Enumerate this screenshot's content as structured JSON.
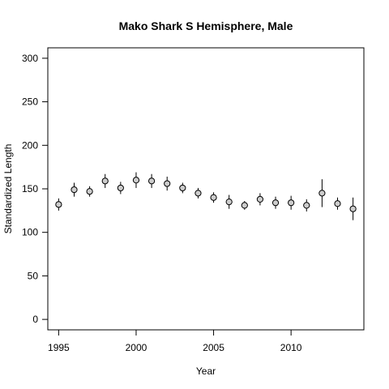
{
  "chart_data": {
    "type": "scatter",
    "title": "Mako Shark S Hemisphere,  Male",
    "xlabel": "Year",
    "ylabel": "Standardized Length",
    "xlim": [
      1994.3,
      2014.7
    ],
    "ylim": [
      -12,
      312
    ],
    "xticks": [
      1995,
      2000,
      2005,
      2010
    ],
    "yticks": [
      0,
      50,
      100,
      150,
      200,
      250,
      300
    ],
    "grid": false,
    "series": [
      {
        "marker": "circle",
        "fill": "#cccccc",
        "stroke": "#000000",
        "points": [
          {
            "x": 1995,
            "y": 132,
            "lo": 125,
            "hi": 139
          },
          {
            "x": 1996,
            "y": 149,
            "lo": 141,
            "hi": 157
          },
          {
            "x": 1997,
            "y": 147,
            "lo": 141,
            "hi": 153
          },
          {
            "x": 1998,
            "y": 159,
            "lo": 151,
            "hi": 167
          },
          {
            "x": 1999,
            "y": 151,
            "lo": 144,
            "hi": 158
          },
          {
            "x": 2000,
            "y": 160,
            "lo": 151,
            "hi": 169
          },
          {
            "x": 2001,
            "y": 159,
            "lo": 151,
            "hi": 167
          },
          {
            "x": 2002,
            "y": 156,
            "lo": 148,
            "hi": 164
          },
          {
            "x": 2003,
            "y": 151,
            "lo": 145,
            "hi": 157
          },
          {
            "x": 2004,
            "y": 145,
            "lo": 139,
            "hi": 151
          },
          {
            "x": 2005,
            "y": 140,
            "lo": 134,
            "hi": 146
          },
          {
            "x": 2006,
            "y": 135,
            "lo": 127,
            "hi": 143
          },
          {
            "x": 2007,
            "y": 131,
            "lo": 126,
            "hi": 136
          },
          {
            "x": 2008,
            "y": 138,
            "lo": 131,
            "hi": 145
          },
          {
            "x": 2009,
            "y": 134,
            "lo": 127,
            "hi": 141
          },
          {
            "x": 2010,
            "y": 134,
            "lo": 126,
            "hi": 142
          },
          {
            "x": 2011,
            "y": 131,
            "lo": 124,
            "hi": 138
          },
          {
            "x": 2012,
            "y": 145,
            "lo": 129,
            "hi": 161
          },
          {
            "x": 2013,
            "y": 133,
            "lo": 126,
            "hi": 140
          },
          {
            "x": 2014,
            "y": 127,
            "lo": 114,
            "hi": 140
          }
        ]
      }
    ]
  }
}
